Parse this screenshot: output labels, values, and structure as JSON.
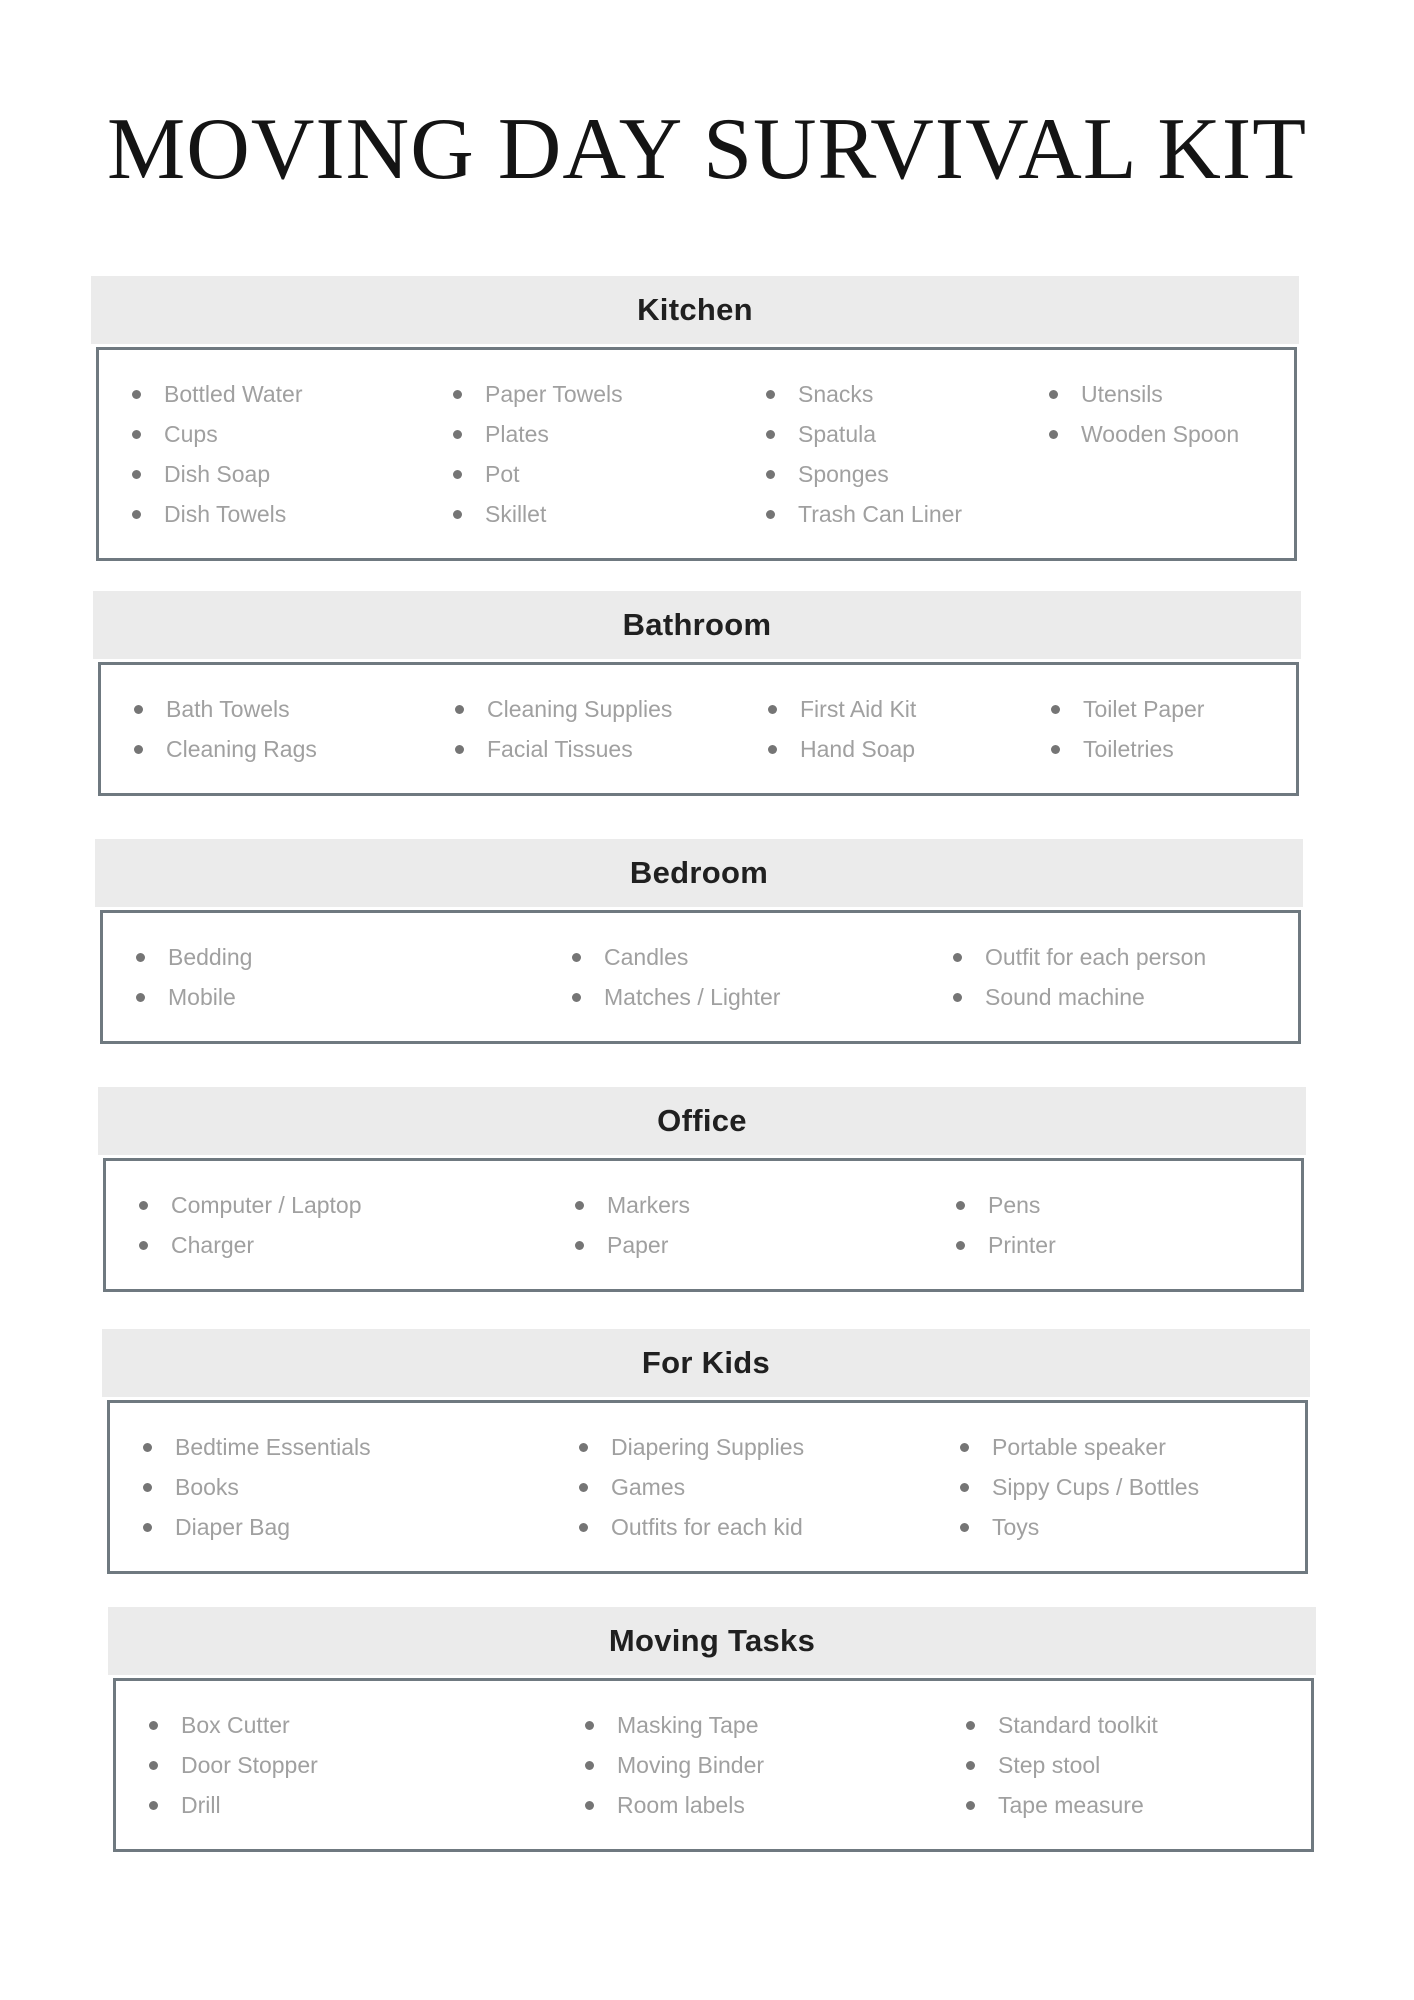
{
  "page": {
    "title": "MOVING DAY SURVIVAL KIT"
  },
  "sections": [
    {
      "title": "Kitchen",
      "columns": [
        [
          "Bottled Water",
          "Cups",
          "Dish Soap",
          "Dish Towels"
        ],
        [
          "Paper Towels",
          "Plates",
          "Pot",
          "Skillet"
        ],
        [
          "Snacks",
          "Spatula",
          "Sponges",
          "Trash Can Liner"
        ],
        [
          "Utensils",
          "Wooden Spoon"
        ]
      ]
    },
    {
      "title": "Bathroom",
      "columns": [
        [
          "Bath Towels",
          "Cleaning Rags"
        ],
        [
          "Cleaning Supplies",
          "Facial Tissues"
        ],
        [
          "First Aid Kit",
          "Hand Soap"
        ],
        [
          "Toilet Paper",
          "Toiletries"
        ]
      ]
    },
    {
      "title": "Bedroom",
      "columns": [
        [
          "Bedding",
          "Mobile"
        ],
        [
          "Candles",
          "Matches / Lighter"
        ],
        [
          "Outfit for each person",
          "Sound machine"
        ]
      ]
    },
    {
      "title": "Office",
      "columns": [
        [
          "Computer / Laptop",
          "Charger"
        ],
        [
          "Markers",
          "Paper"
        ],
        [
          "Pens",
          "Printer"
        ]
      ]
    },
    {
      "title": "For Kids",
      "columns": [
        [
          "Bedtime Essentials",
          "Books",
          "Diaper Bag"
        ],
        [
          "Diapering Supplies",
          "Games",
          "Outfits for each kid"
        ],
        [
          "Portable speaker",
          "Sippy Cups / Bottles",
          "Toys"
        ]
      ]
    },
    {
      "title": "Moving Tasks",
      "columns": [
        [
          "Box Cutter",
          "Door Stopper",
          "Drill"
        ],
        [
          "Masking Tape",
          "Moving Binder",
          "Room labels"
        ],
        [
          "Standard toolkit",
          "Step stool",
          "Tape measure"
        ]
      ]
    }
  ],
  "colors": {
    "title_text": "#141414",
    "section_title_text": "#202020",
    "header_bar": "#ebebeb",
    "box_border": "#6f7980",
    "item_text": "#a0a0a0",
    "bullet": "#757575"
  }
}
